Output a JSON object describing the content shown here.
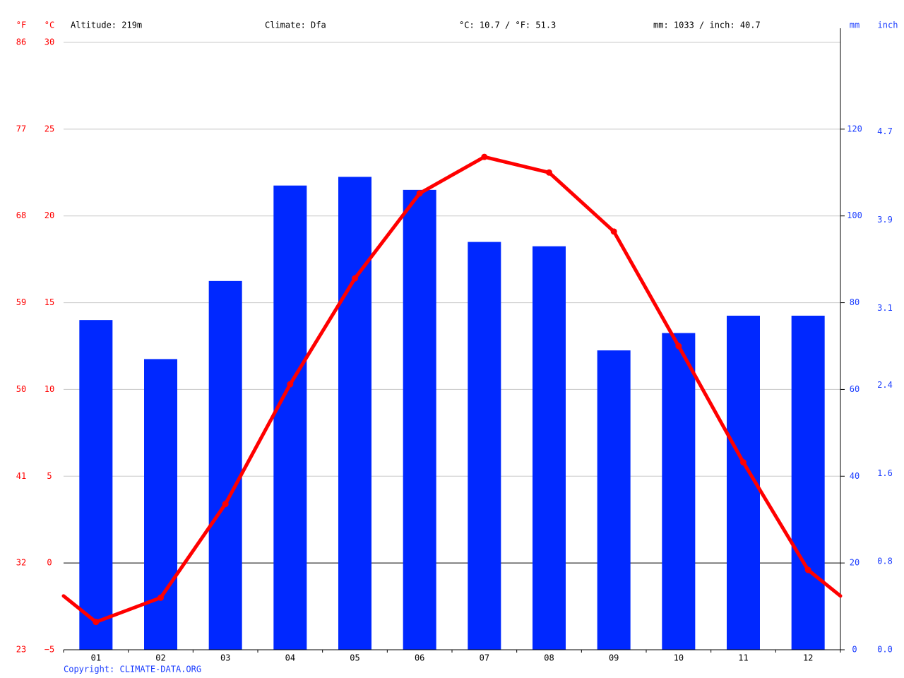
{
  "chart_data": {
    "type": "climate",
    "annotations": [
      "Altitude: 219m",
      "Climate: Dfa",
      "°C: 10.7 / °F: 51.3",
      "mm: 1033 / inch: 40.7"
    ],
    "copyright": "Copyright: CLIMATE-DATA.ORG",
    "categories": [
      "01",
      "02",
      "03",
      "04",
      "05",
      "06",
      "07",
      "08",
      "09",
      "10",
      "11",
      "12"
    ],
    "series": [
      {
        "type": "bar",
        "axis": "y2",
        "color": "#0028ff",
        "values": [
          76,
          67,
          85,
          107,
          109,
          106,
          94,
          93,
          69,
          73,
          77,
          77
        ]
      },
      {
        "type": "line",
        "color": "#ff0000",
        "values": [
          -3.4,
          -2.0,
          3.4,
          10.3,
          16.4,
          21.3,
          23.4,
          22.5,
          19.1,
          12.5,
          5.8,
          -0.4
        ]
      }
    ],
    "ylabel": "°C",
    "ylim": [
      -5,
      30
    ],
    "yticks": [
      {
        "value": -5,
        "label": "−5"
      },
      0,
      5,
      10,
      15,
      20,
      25,
      30
    ],
    "y2label": "mm",
    "y2lim": [
      0,
      140
    ],
    "y2ticks": [
      0,
      20,
      40,
      60,
      80,
      100,
      120
    ],
    "fahrenheit": {
      "label": "°F",
      "lim": [
        23,
        86
      ],
      "ticks": [
        23,
        32,
        41,
        50,
        59,
        68,
        77,
        86
      ]
    },
    "inch": {
      "label": "inch",
      "lim": [
        0,
        5.5118
      ],
      "ticks": [
        {
          "value": 0,
          "label": "0.0"
        },
        0.8,
        1.6,
        2.4,
        3.1,
        3.9,
        4.7
      ]
    },
    "grid": true
  }
}
